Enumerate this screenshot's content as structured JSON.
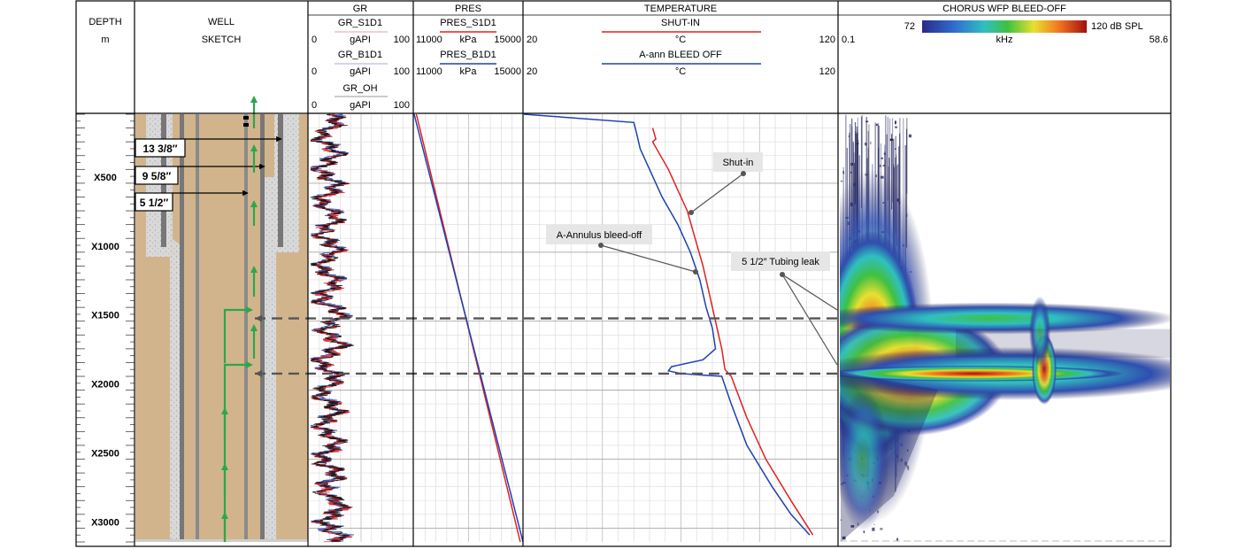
{
  "columns": {
    "depth": {
      "title": "DEPTH",
      "unit": "m"
    },
    "well": {
      "title_line1": "WELL",
      "title_line2": "SKETCH"
    },
    "gr": {
      "title": "GR",
      "curves": [
        {
          "name": "GR_S1D1",
          "unit": "gAPI",
          "min": "0",
          "max": "100",
          "color": "#e8a0a0"
        },
        {
          "name": "GR_B1D1",
          "unit": "gAPI",
          "min": "0",
          "max": "100",
          "color": "#a0a8e0"
        },
        {
          "name": "GR_OH",
          "unit": "gAPI",
          "min": "0",
          "max": "100",
          "color": "#999999"
        }
      ]
    },
    "pres": {
      "title": "PRES",
      "curves": [
        {
          "name": "PRES_S1D1",
          "unit": "kPa",
          "min": "11000",
          "max": "15000",
          "color": "#e02020"
        },
        {
          "name": "PRES_B1D1",
          "unit": "kPa",
          "min": "11000",
          "max": "15000",
          "color": "#2040b0"
        }
      ]
    },
    "temp": {
      "title": "TEMPERATURE",
      "curves": [
        {
          "name": "SHUT-IN",
          "unit": "°C",
          "min": "20",
          "max": "120",
          "color": "#e02020"
        },
        {
          "name": "A-ann BLEED OFF",
          "unit": "°C",
          "min": "20",
          "max": "120",
          "color": "#2040b0"
        }
      ]
    },
    "chorus": {
      "title": "CHORUS WFP BLEED-OFF",
      "scale_min": "72",
      "scale_max": "120 dB SPL",
      "unit": "kHz",
      "freq_min": "0.1",
      "freq_max": "58.6"
    }
  },
  "casings": [
    "13 3/8″",
    "9 5/8″",
    "5 1/2″"
  ],
  "annotations": {
    "shut_in": "Shut-in",
    "annulus": "A-Annulus bleed-off",
    "leak": "5 1/2″ Tubing leak"
  },
  "colors": {
    "red": "#e02020",
    "blue": "#2040b0",
    "sand": "#d2b48c",
    "green": "#2aa84a"
  },
  "chart_data": {
    "type": "line",
    "depth_range": [
      0,
      3100
    ],
    "depth_ticks": [
      "X500",
      "X1000",
      "X1500",
      "X2000",
      "X2500",
      "X3000"
    ],
    "leak_depths": [
      1480,
      1880
    ],
    "series": [
      {
        "name": "PRES_S1D1",
        "unit": "kPa",
        "x_range": [
          11000,
          15000
        ],
        "depth": [
          0,
          3100
        ],
        "values": [
          11080,
          14900
        ]
      },
      {
        "name": "PRES_B1D1",
        "unit": "kPa",
        "x_range": [
          11000,
          15000
        ],
        "depth": [
          0,
          3100
        ],
        "values": [
          11000,
          15000
        ]
      },
      {
        "name": "SHUT-IN",
        "unit": "°C",
        "x_range": [
          20,
          120
        ],
        "depth": [
          100,
          180,
          200,
          400,
          700,
          1100,
          1300,
          1500,
          1700,
          1850,
          1900,
          2200,
          2500,
          2800,
          3050
        ],
        "values": [
          61,
          62,
          61,
          66,
          72,
          77,
          79,
          81,
          83,
          84,
          86,
          91,
          97,
          105,
          112
        ]
      },
      {
        "name": "A-ann BLEED OFF",
        "unit": "°C",
        "x_range": [
          20,
          120
        ],
        "depth": [
          0,
          60,
          150,
          250,
          400,
          600,
          800,
          1000,
          1200,
          1400,
          1550,
          1700,
          1780,
          1830,
          1860,
          1880,
          1900,
          2100,
          2400,
          2700,
          2900,
          3050
        ],
        "values": [
          20,
          55,
          56,
          57,
          60,
          64,
          69,
          73,
          76,
          78,
          80,
          81,
          77,
          67,
          66,
          70,
          83,
          86,
          91,
          99,
          105,
          111
        ]
      }
    ]
  }
}
